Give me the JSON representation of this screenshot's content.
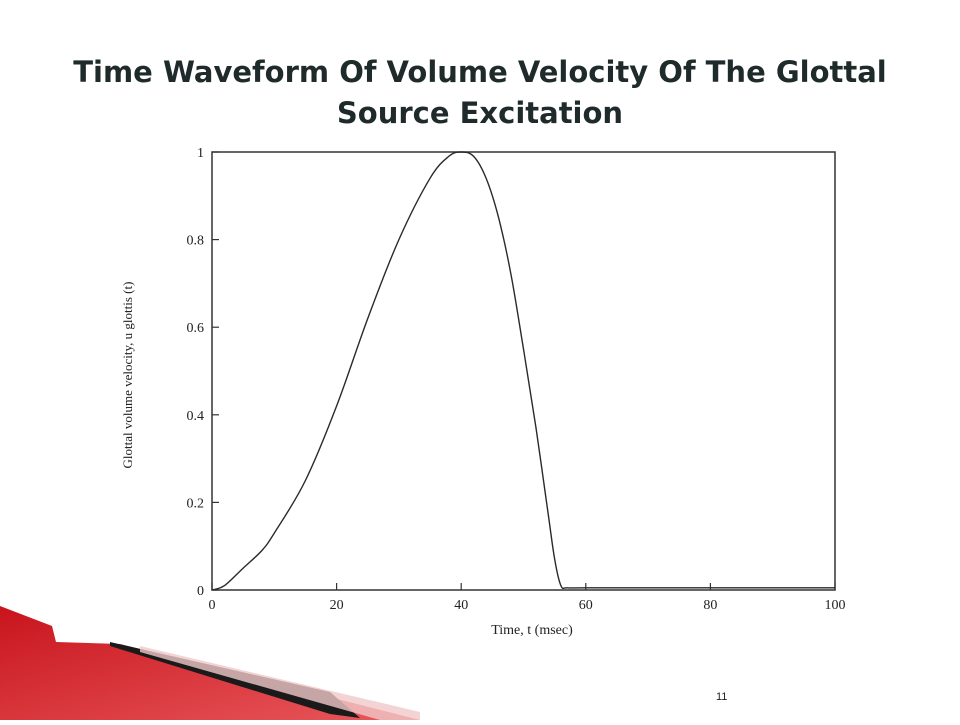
{
  "slide": {
    "title_line1": "Time Waveform Of Volume Velocity Of The Glottal",
    "title_line2": "Source Excitation",
    "page_number": "11"
  },
  "colors": {
    "ribbon_dark": "#1a1a1a",
    "ribbon_red": "#c8141c",
    "ribbon_red_light": "#e8585c",
    "axis": "#333333"
  },
  "chart_data": {
    "type": "line",
    "xlabel": "Time, t (msec)",
    "ylabel": "Glottal volume velocity, u glottis (t)",
    "xlim": [
      0,
      100
    ],
    "ylim": [
      0,
      1
    ],
    "xticks": [
      0,
      20,
      40,
      60,
      80,
      100
    ],
    "xtick_labels": [
      "0",
      "20",
      "40",
      "60",
      "80",
      "100"
    ],
    "yticks": [
      0,
      0.2,
      0.4,
      0.6,
      0.8,
      1
    ],
    "ytick_labels": [
      "0",
      "0.2",
      "0.4",
      "0.6",
      "0.8",
      "1"
    ],
    "grid": false,
    "series": [
      {
        "x": [
          0,
          2,
          5,
          8,
          10,
          15,
          20,
          25,
          30,
          35,
          38,
          40,
          42,
          44,
          46,
          48,
          50,
          52,
          54,
          55,
          56,
          57,
          60,
          70,
          80,
          90,
          100
        ],
        "y": [
          0,
          0.01,
          0.05,
          0.09,
          0.13,
          0.25,
          0.42,
          0.62,
          0.8,
          0.94,
          0.99,
          1.0,
          0.99,
          0.94,
          0.85,
          0.72,
          0.55,
          0.37,
          0.17,
          0.07,
          0.01,
          0.005,
          0.005,
          0.005,
          0.005,
          0.005,
          0.005
        ]
      }
    ]
  }
}
